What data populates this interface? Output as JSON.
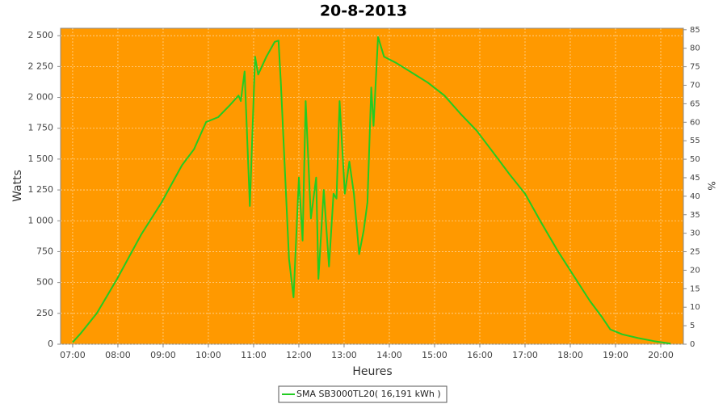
{
  "chart_data": {
    "type": "line",
    "title": "20-8-2013",
    "x_label": "Heures",
    "y_label": "Watts",
    "y2_label": "%",
    "x": [
      "07:00",
      "07:11",
      "07:32",
      "07:59",
      "08:31",
      "08:58",
      "09:25",
      "09:41",
      "09:57",
      "10:13",
      "10:29",
      "10:40",
      "10:43",
      "10:48",
      "10:55",
      "11:02",
      "11:06",
      "11:17",
      "11:28",
      "11:33",
      "11:36",
      "11:41",
      "11:47",
      "11:53",
      "12:00",
      "12:05",
      "12:09",
      "12:16",
      "12:23",
      "12:26",
      "12:33",
      "12:40",
      "12:46",
      "12:50",
      "12:54",
      "13:01",
      "13:07",
      "13:13",
      "13:20",
      "13:26",
      "13:31",
      "13:36",
      "13:39",
      "13:45",
      "13:53",
      "14:09",
      "14:30",
      "14:51",
      "15:13",
      "15:34",
      "15:56",
      "16:17",
      "16:39",
      "17:00",
      "17:21",
      "17:43",
      "18:04",
      "18:26",
      "18:42",
      "18:53",
      "19:09",
      "19:30",
      "19:51",
      "20:13"
    ],
    "series": [
      {
        "name": "SMA SB3000TL20( 16,191 kWh )",
        "color": "#22cc22",
        "values": [
          15,
          90,
          250,
          530,
          890,
          1150,
          1450,
          1580,
          1800,
          1840,
          1940,
          2015,
          1970,
          2210,
          1120,
          2330,
          2185,
          2330,
          2450,
          2460,
          2130,
          1480,
          690,
          380,
          1350,
          840,
          1970,
          1020,
          1350,
          530,
          1250,
          630,
          1220,
          1180,
          1970,
          1220,
          1480,
          1220,
          730,
          920,
          1150,
          2080,
          1770,
          2490,
          2330,
          2280,
          2200,
          2120,
          2015,
          1870,
          1730,
          1560,
          1380,
          1220,
          990,
          760,
          560,
          350,
          220,
          120,
          80,
          50,
          25,
          5
        ]
      }
    ],
    "xlim": [
      "06:44",
      "20:30"
    ],
    "xticks": [
      "07:00",
      "08:00",
      "09:00",
      "10:00",
      "11:00",
      "12:00",
      "13:00",
      "14:00",
      "15:00",
      "16:00",
      "17:00",
      "18:00",
      "19:00",
      "20:00"
    ],
    "ylim": [
      0,
      2560
    ],
    "yticks": [
      0,
      250,
      500,
      750,
      {
        "value": 1000,
        "label": "1 000"
      },
      {
        "value": 1250,
        "label": "1 250"
      },
      {
        "value": 1500,
        "label": "1 500"
      },
      {
        "value": 1750,
        "label": "1 750"
      },
      {
        "value": 2000,
        "label": "2 000"
      },
      {
        "value": 2250,
        "label": "2 250"
      },
      {
        "value": 2500,
        "label": "2 500"
      }
    ],
    "y2lim": [
      0,
      85.4
    ],
    "y2ticks": [
      0,
      5,
      10,
      15,
      20,
      25,
      30,
      35,
      40,
      45,
      50,
      55,
      60,
      65,
      70,
      75,
      80,
      85
    ],
    "grid": true,
    "plot_background": "#ff9900",
    "legend": "bottom"
  }
}
